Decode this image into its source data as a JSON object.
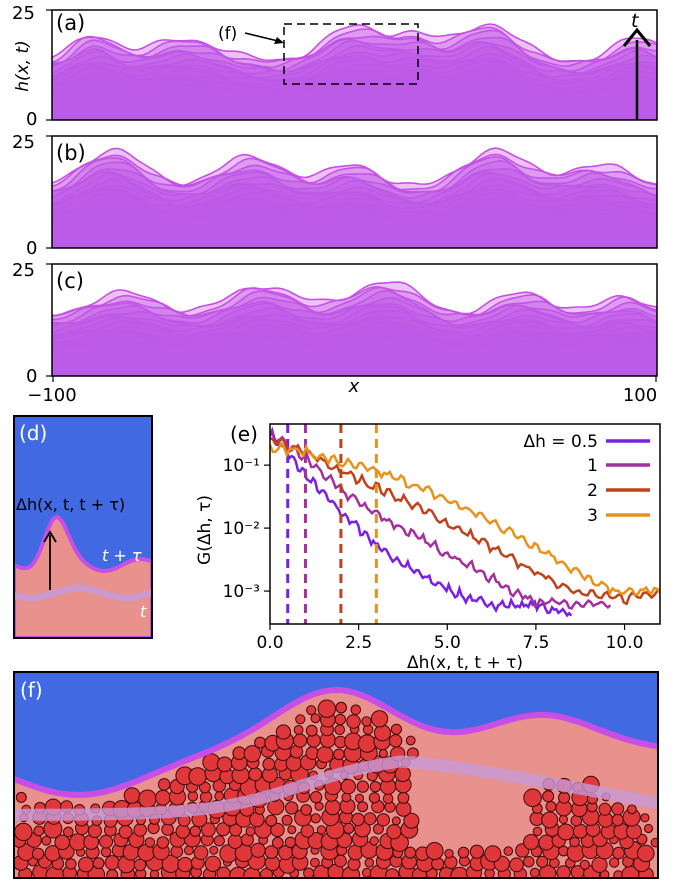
{
  "panels_abc": {
    "a_label": "(a)",
    "b_label": "(b)",
    "c_label": "(c)",
    "ylabel": "h(x, t)",
    "y_ticks": [
      "0",
      "25"
    ],
    "x_ticks": [
      "−100",
      "100"
    ],
    "xlabel": "x",
    "t_arrow_label": "t",
    "f_pointer_label": "(f)",
    "xlim": [
      -100,
      100
    ],
    "ylim": [
      0,
      25
    ]
  },
  "panel_d": {
    "label": "(d)",
    "dh_label": "Δh(x, t, t + τ)",
    "t_tau_label": "t + τ",
    "t_label": "t"
  },
  "panel_e": {
    "label": "(e)",
    "ylabel": "G(Δh, τ)",
    "xlabel": "Δh(x, t, t + τ)",
    "x_ticks": [
      "0.0",
      "2.5",
      "5.0",
      "7.5",
      "10.0"
    ],
    "y_ticks": [
      "10⁻¹",
      "10⁻²",
      "10⁻³"
    ]
  },
  "panel_f": {
    "label": "(f)"
  },
  "colors": {
    "sky": "#4169e1",
    "solid": "#e9918c",
    "grain": "#e0383a",
    "magenta": "#c84fe6",
    "cyan": "#4fc8f0",
    "dh05": "#7a1fe6",
    "dh1": "#a3309e",
    "dh2": "#c0421a",
    "dh3": "#e8921c"
  },
  "chart_data": {
    "type": "line",
    "title": "",
    "xlabel": "Δh(x, t, t + τ)",
    "ylabel": "G(Δh, τ)",
    "xlim": [
      0,
      11
    ],
    "ylim": [
      0.0003,
      0.45
    ],
    "yscale": "log",
    "legend_position": "top-right",
    "series": [
      {
        "name": "Δh = 0.5",
        "threshold": 0.5,
        "color": "#7a1fe6",
        "x": [
          0.0,
          0.5,
          1.0,
          1.5,
          2.0,
          2.5,
          3.0,
          3.5,
          4.0,
          4.5,
          5.0,
          5.5,
          6.0,
          6.5,
          7.0,
          7.5,
          8.0,
          8.5
        ],
        "y": [
          0.32,
          0.15,
          0.07,
          0.035,
          0.018,
          0.01,
          0.0055,
          0.0033,
          0.0022,
          0.0015,
          0.0011,
          0.0008,
          0.00065,
          0.0006,
          0.0006,
          0.0006,
          0.0005,
          0.00045
        ]
      },
      {
        "name": "1",
        "threshold": 1,
        "color": "#a3309e",
        "x": [
          0.0,
          1.0,
          2.0,
          3.0,
          4.0,
          5.0,
          5.5,
          6.0,
          6.5,
          7.0,
          7.5,
          8.0,
          8.5,
          9.0,
          9.6
        ],
        "y": [
          0.3,
          0.13,
          0.04,
          0.017,
          0.008,
          0.004,
          0.0028,
          0.0019,
          0.0013,
          0.0009,
          0.0007,
          0.00065,
          0.0006,
          0.0006,
          0.0006
        ]
      },
      {
        "name": "2",
        "threshold": 2,
        "color": "#c0421a",
        "x": [
          0.0,
          1.0,
          2.0,
          3.0,
          4.0,
          5.0,
          6.0,
          6.5,
          7.0,
          7.5,
          8.0,
          8.5,
          9.0,
          9.5,
          10.0,
          10.5,
          11.0
        ],
        "y": [
          0.25,
          0.16,
          0.08,
          0.045,
          0.024,
          0.012,
          0.006,
          0.004,
          0.0028,
          0.002,
          0.0014,
          0.0011,
          0.0009,
          0.0008,
          0.00075,
          0.0009,
          0.001
        ]
      },
      {
        "name": "3",
        "threshold": 3,
        "color": "#e8921c",
        "x": [
          0.0,
          1.0,
          2.0,
          3.0,
          4.0,
          5.0,
          6.0,
          7.0,
          7.5,
          8.0,
          8.5,
          9.0,
          9.5,
          10.0,
          10.5,
          11.0
        ],
        "y": [
          0.2,
          0.16,
          0.11,
          0.08,
          0.05,
          0.028,
          0.015,
          0.0075,
          0.0052,
          0.0035,
          0.0023,
          0.0015,
          0.0011,
          0.00095,
          0.001,
          0.001
        ]
      }
    ],
    "legend": [
      "Δh = 0.5",
      "1",
      "2",
      "3"
    ]
  }
}
